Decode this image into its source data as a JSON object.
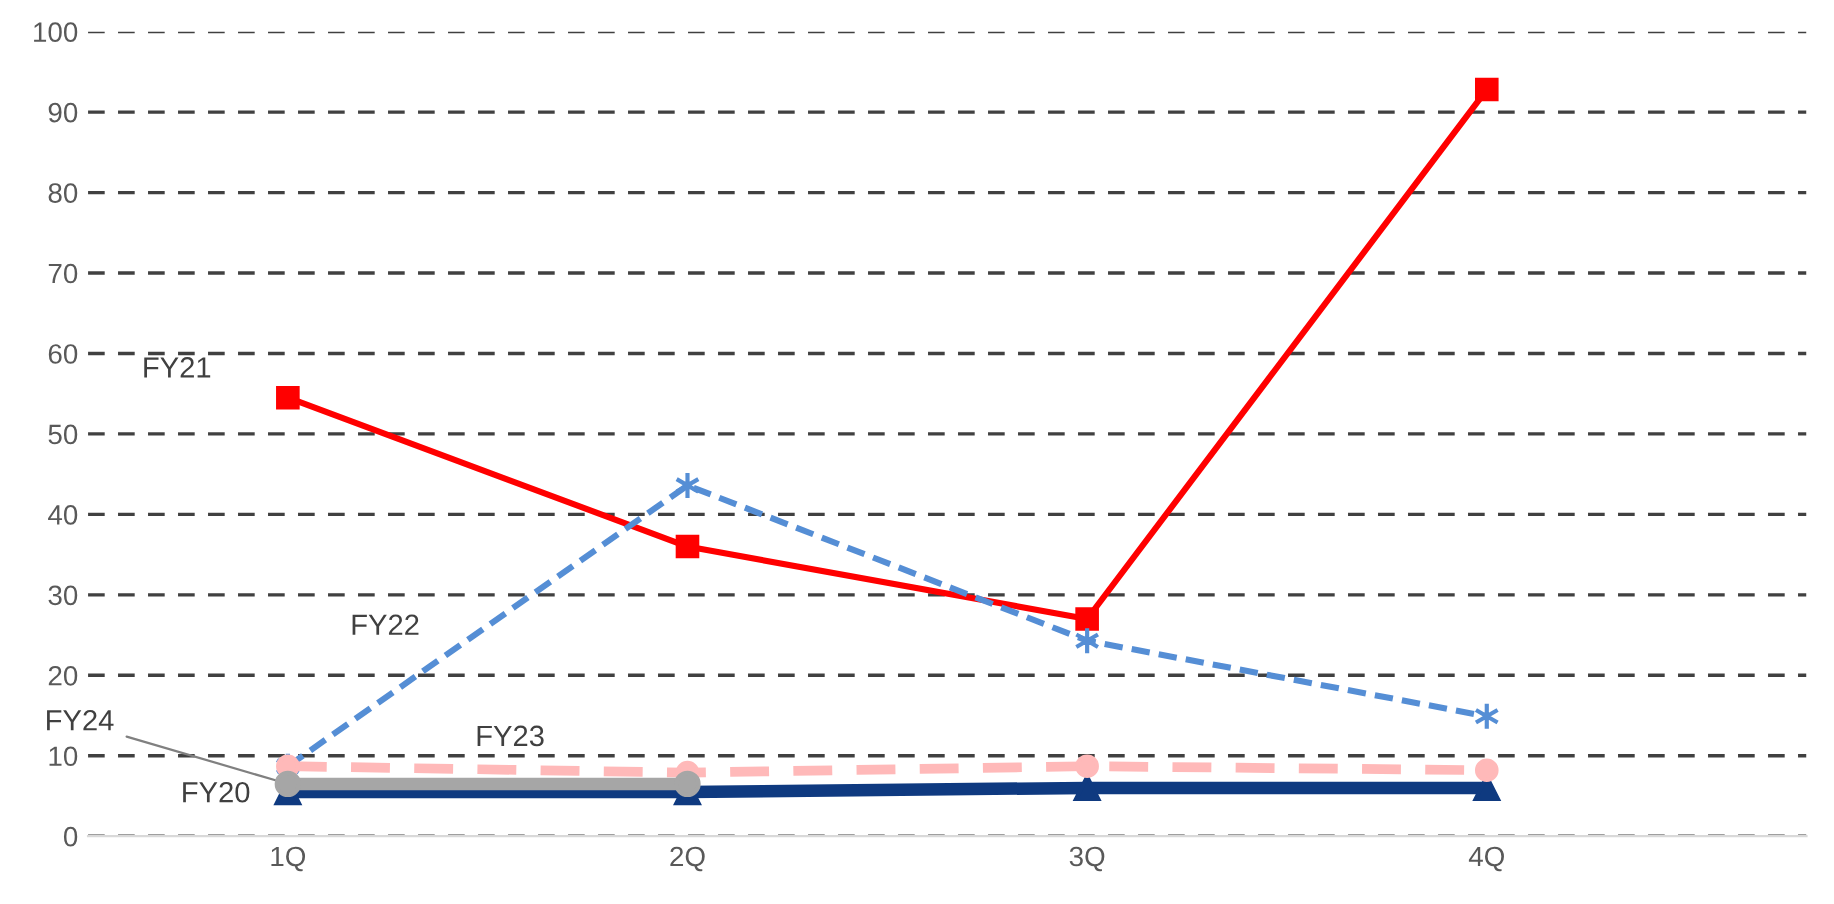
{
  "chart_data": {
    "type": "line",
    "categories": [
      "1Q",
      "2Q",
      "3Q",
      "4Q"
    ],
    "series": [
      {
        "name": "FY20",
        "color": "#0f3a80",
        "values": [
          5.5,
          5.5,
          6,
          6
        ],
        "marker": "triangle",
        "line_style": "solid"
      },
      {
        "name": "FY21",
        "color": "#ff0000",
        "values": [
          54.5,
          36,
          27,
          92.8
        ],
        "marker": "square",
        "line_style": "solid"
      },
      {
        "name": "FY22",
        "color": "#558ed5",
        "values": [
          8.7,
          43.6,
          24.3,
          14.9
        ],
        "marker": "cross",
        "line_style": "dashed"
      },
      {
        "name": "FY23",
        "color": "#ffb9b9",
        "values": [
          8.7,
          7.9,
          8.7,
          8.2
        ],
        "marker": "circle",
        "line_style": "dashed"
      },
      {
        "name": "FY24",
        "color": "#a6a6a6",
        "values": [
          6.5,
          6.5,
          null,
          null
        ],
        "marker": "circle",
        "line_style": "solid"
      }
    ],
    "ylim": [
      0,
      100
    ],
    "yticks": [
      0,
      10,
      20,
      30,
      40,
      50,
      60,
      70,
      80,
      90,
      100
    ],
    "grid": "y",
    "legend": false
  }
}
